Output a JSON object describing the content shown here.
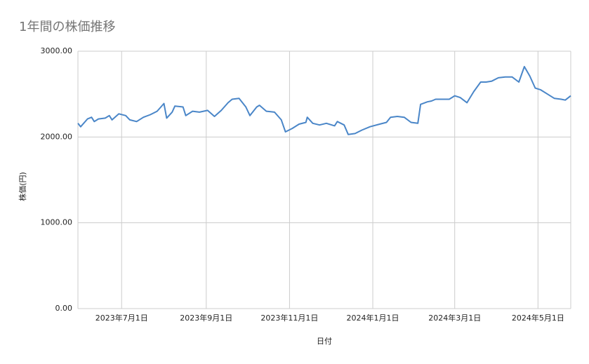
{
  "chart_data": {
    "type": "line",
    "title": "1年間の株価推移",
    "x_label": "日付",
    "y_label": "株価(円)",
    "x": [
      "2023-05-30",
      "2023-06-01",
      "2023-06-06",
      "2023-06-09",
      "2023-06-11",
      "2023-06-14",
      "2023-06-19",
      "2023-06-22",
      "2023-06-24",
      "2023-06-29",
      "2023-07-04",
      "2023-07-07",
      "2023-07-12",
      "2023-07-17",
      "2023-07-22",
      "2023-07-27",
      "2023-08-01",
      "2023-08-03",
      "2023-08-07",
      "2023-08-09",
      "2023-08-15",
      "2023-08-17",
      "2023-08-22",
      "2023-08-27",
      "2023-09-02",
      "2023-09-07",
      "2023-09-12",
      "2023-09-17",
      "2023-09-20",
      "2023-09-25",
      "2023-09-30",
      "2023-10-03",
      "2023-10-08",
      "2023-10-10",
      "2023-10-15",
      "2023-10-21",
      "2023-10-26",
      "2023-10-29",
      "2023-11-03",
      "2023-11-08",
      "2023-11-13",
      "2023-11-14",
      "2023-11-18",
      "2023-11-23",
      "2023-11-28",
      "2023-12-04",
      "2023-12-06",
      "2023-12-11",
      "2023-12-14",
      "2023-12-19",
      "2023-12-24",
      "2023-12-30",
      "2024-01-06",
      "2024-01-11",
      "2024-01-14",
      "2024-01-19",
      "2024-01-24",
      "2024-01-29",
      "2024-02-03",
      "2024-02-05",
      "2024-02-10",
      "2024-02-13",
      "2024-02-16",
      "2024-02-21",
      "2024-02-26",
      "2024-03-01",
      "2024-03-05",
      "2024-03-10",
      "2024-03-15",
      "2024-03-20",
      "2024-03-24",
      "2024-03-28",
      "2024-04-02",
      "2024-04-07",
      "2024-04-12",
      "2024-04-17",
      "2024-04-21",
      "2024-04-25",
      "2024-04-29",
      "2024-05-03",
      "2024-05-08",
      "2024-05-13",
      "2024-05-18",
      "2024-05-21",
      "2024-05-25"
    ],
    "series": [
      {
        "name": "株価",
        "color": "#4a86c8",
        "values": [
          2160,
          2120,
          2210,
          2230,
          2180,
          2210,
          2220,
          2250,
          2200,
          2270,
          2250,
          2200,
          2180,
          2230,
          2260,
          2300,
          2390,
          2220,
          2290,
          2360,
          2350,
          2250,
          2300,
          2290,
          2310,
          2240,
          2310,
          2400,
          2440,
          2450,
          2350,
          2250,
          2350,
          2370,
          2300,
          2290,
          2200,
          2060,
          2100,
          2150,
          2170,
          2230,
          2160,
          2140,
          2160,
          2130,
          2180,
          2140,
          2030,
          2040,
          2080,
          2120,
          2150,
          2170,
          2230,
          2240,
          2230,
          2170,
          2160,
          2380,
          2410,
          2420,
          2440,
          2440,
          2440,
          2480,
          2460,
          2400,
          2530,
          2640,
          2640,
          2650,
          2690,
          2700,
          2700,
          2640,
          2820,
          2710,
          2570,
          2550,
          2500,
          2450,
          2440,
          2430,
          2480
        ]
      }
    ],
    "xlim": [
      "2023-05-30",
      "2024-05-25"
    ],
    "xticks": [
      {
        "value": "2023-07-01",
        "label": "2023年7月1日"
      },
      {
        "value": "2023-09-01",
        "label": "2023年9月1日"
      },
      {
        "value": "2023-11-01",
        "label": "2023年11月1日"
      },
      {
        "value": "2024-01-01",
        "label": "2024年1月1日"
      },
      {
        "value": "2024-03-01",
        "label": "2024年3月1日"
      },
      {
        "value": "2024-05-01",
        "label": "2024年5月1日"
      }
    ],
    "ylim": [
      0,
      3000
    ],
    "yticks": [
      {
        "value": 0,
        "label": "0.00"
      },
      {
        "value": 1000,
        "label": "1000.00"
      },
      {
        "value": 2000,
        "label": "2000.00"
      },
      {
        "value": 3000,
        "label": "3000.00"
      }
    ],
    "grid": true
  }
}
